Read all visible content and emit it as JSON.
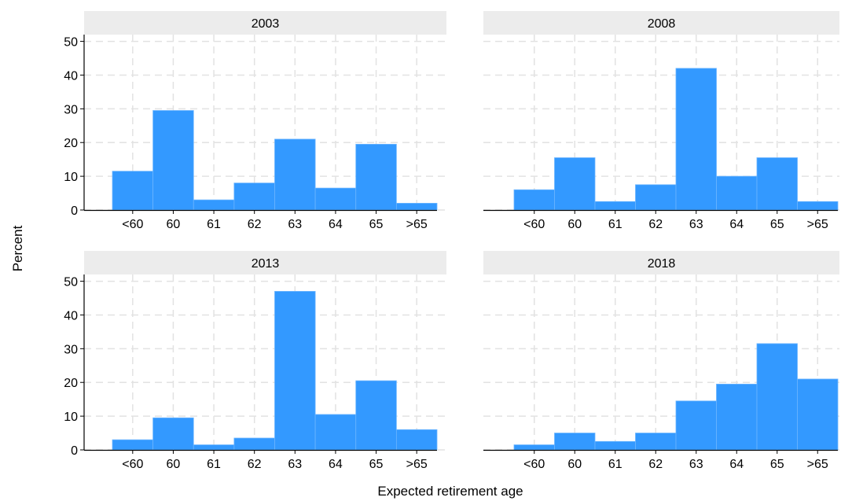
{
  "chart_data": {
    "type": "bar",
    "xlabel": "Expected retirement age",
    "ylabel": "Percent",
    "ylim": [
      0,
      52
    ],
    "yticks": [
      0,
      10,
      20,
      30,
      40,
      50
    ],
    "categories": [
      "<60",
      "60",
      "61",
      "62",
      "63",
      "64",
      "65",
      ">65"
    ],
    "grid": true,
    "bar_color": "#3399ff",
    "panels": [
      {
        "title": "2003",
        "values": [
          11.5,
          29.5,
          3.0,
          8.0,
          21.0,
          6.5,
          19.5,
          2.0
        ]
      },
      {
        "title": "2008",
        "values": [
          6.0,
          15.5,
          2.5,
          7.5,
          42.0,
          10.0,
          15.5,
          2.5
        ]
      },
      {
        "title": "2013",
        "values": [
          3.0,
          9.5,
          1.5,
          3.5,
          47.0,
          10.5,
          20.5,
          6.0
        ]
      },
      {
        "title": "2018",
        "values": [
          1.5,
          5.0,
          2.5,
          5.0,
          14.5,
          19.5,
          31.5,
          21.0
        ]
      }
    ]
  }
}
